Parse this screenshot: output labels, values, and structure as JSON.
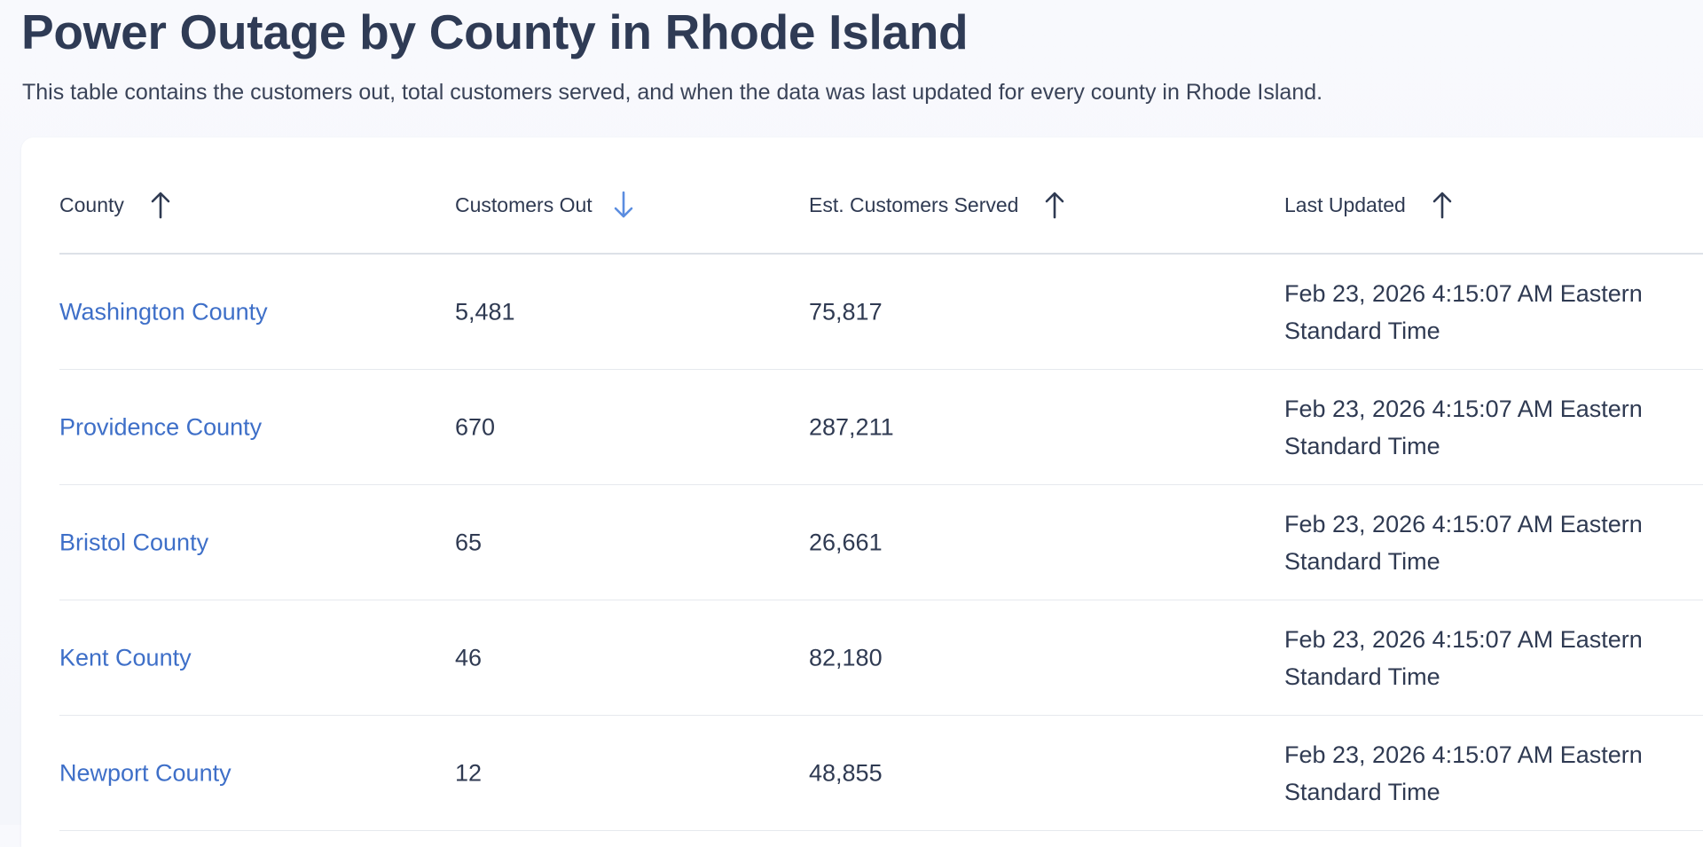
{
  "page": {
    "title": "Power Outage by County in Rhode Island",
    "description": "This table contains the customers out, total customers served, and when the data was last updated for every county in Rhode Island."
  },
  "table": {
    "columns": [
      {
        "label": "County",
        "sort_icon": "arrow-up-icon",
        "sort_color": "#2f3a52"
      },
      {
        "label": "Customers Out",
        "sort_icon": "arrow-down-icon",
        "sort_color": "#5b8de0"
      },
      {
        "label": "Est. Customers Served",
        "sort_icon": "arrow-up-icon",
        "sort_color": "#2f3a52"
      },
      {
        "label": "Last Updated",
        "sort_icon": "arrow-up-icon",
        "sort_color": "#2f3a52"
      }
    ],
    "rows": [
      {
        "county": "Washington County",
        "customers_out": "5,481",
        "served": "75,817",
        "updated": "Feb 23, 2026 4:15:07 AM Eastern Standard Time"
      },
      {
        "county": "Providence County",
        "customers_out": "670",
        "served": "287,211",
        "updated": "Feb 23, 2026 4:15:07 AM Eastern Standard Time"
      },
      {
        "county": "Bristol County",
        "customers_out": "65",
        "served": "26,661",
        "updated": "Feb 23, 2026 4:15:07 AM Eastern Standard Time"
      },
      {
        "county": "Kent County",
        "customers_out": "46",
        "served": "82,180",
        "updated": "Feb 23, 2026 4:15:07 AM Eastern Standard Time"
      },
      {
        "county": "Newport County",
        "customers_out": "12",
        "served": "48,855",
        "updated": "Feb 23, 2026 4:15:07 AM Eastern Standard Time"
      }
    ]
  },
  "colors": {
    "link": "#3e6fc8",
    "text": "#2f3a52",
    "active_sort": "#5b8de0"
  }
}
